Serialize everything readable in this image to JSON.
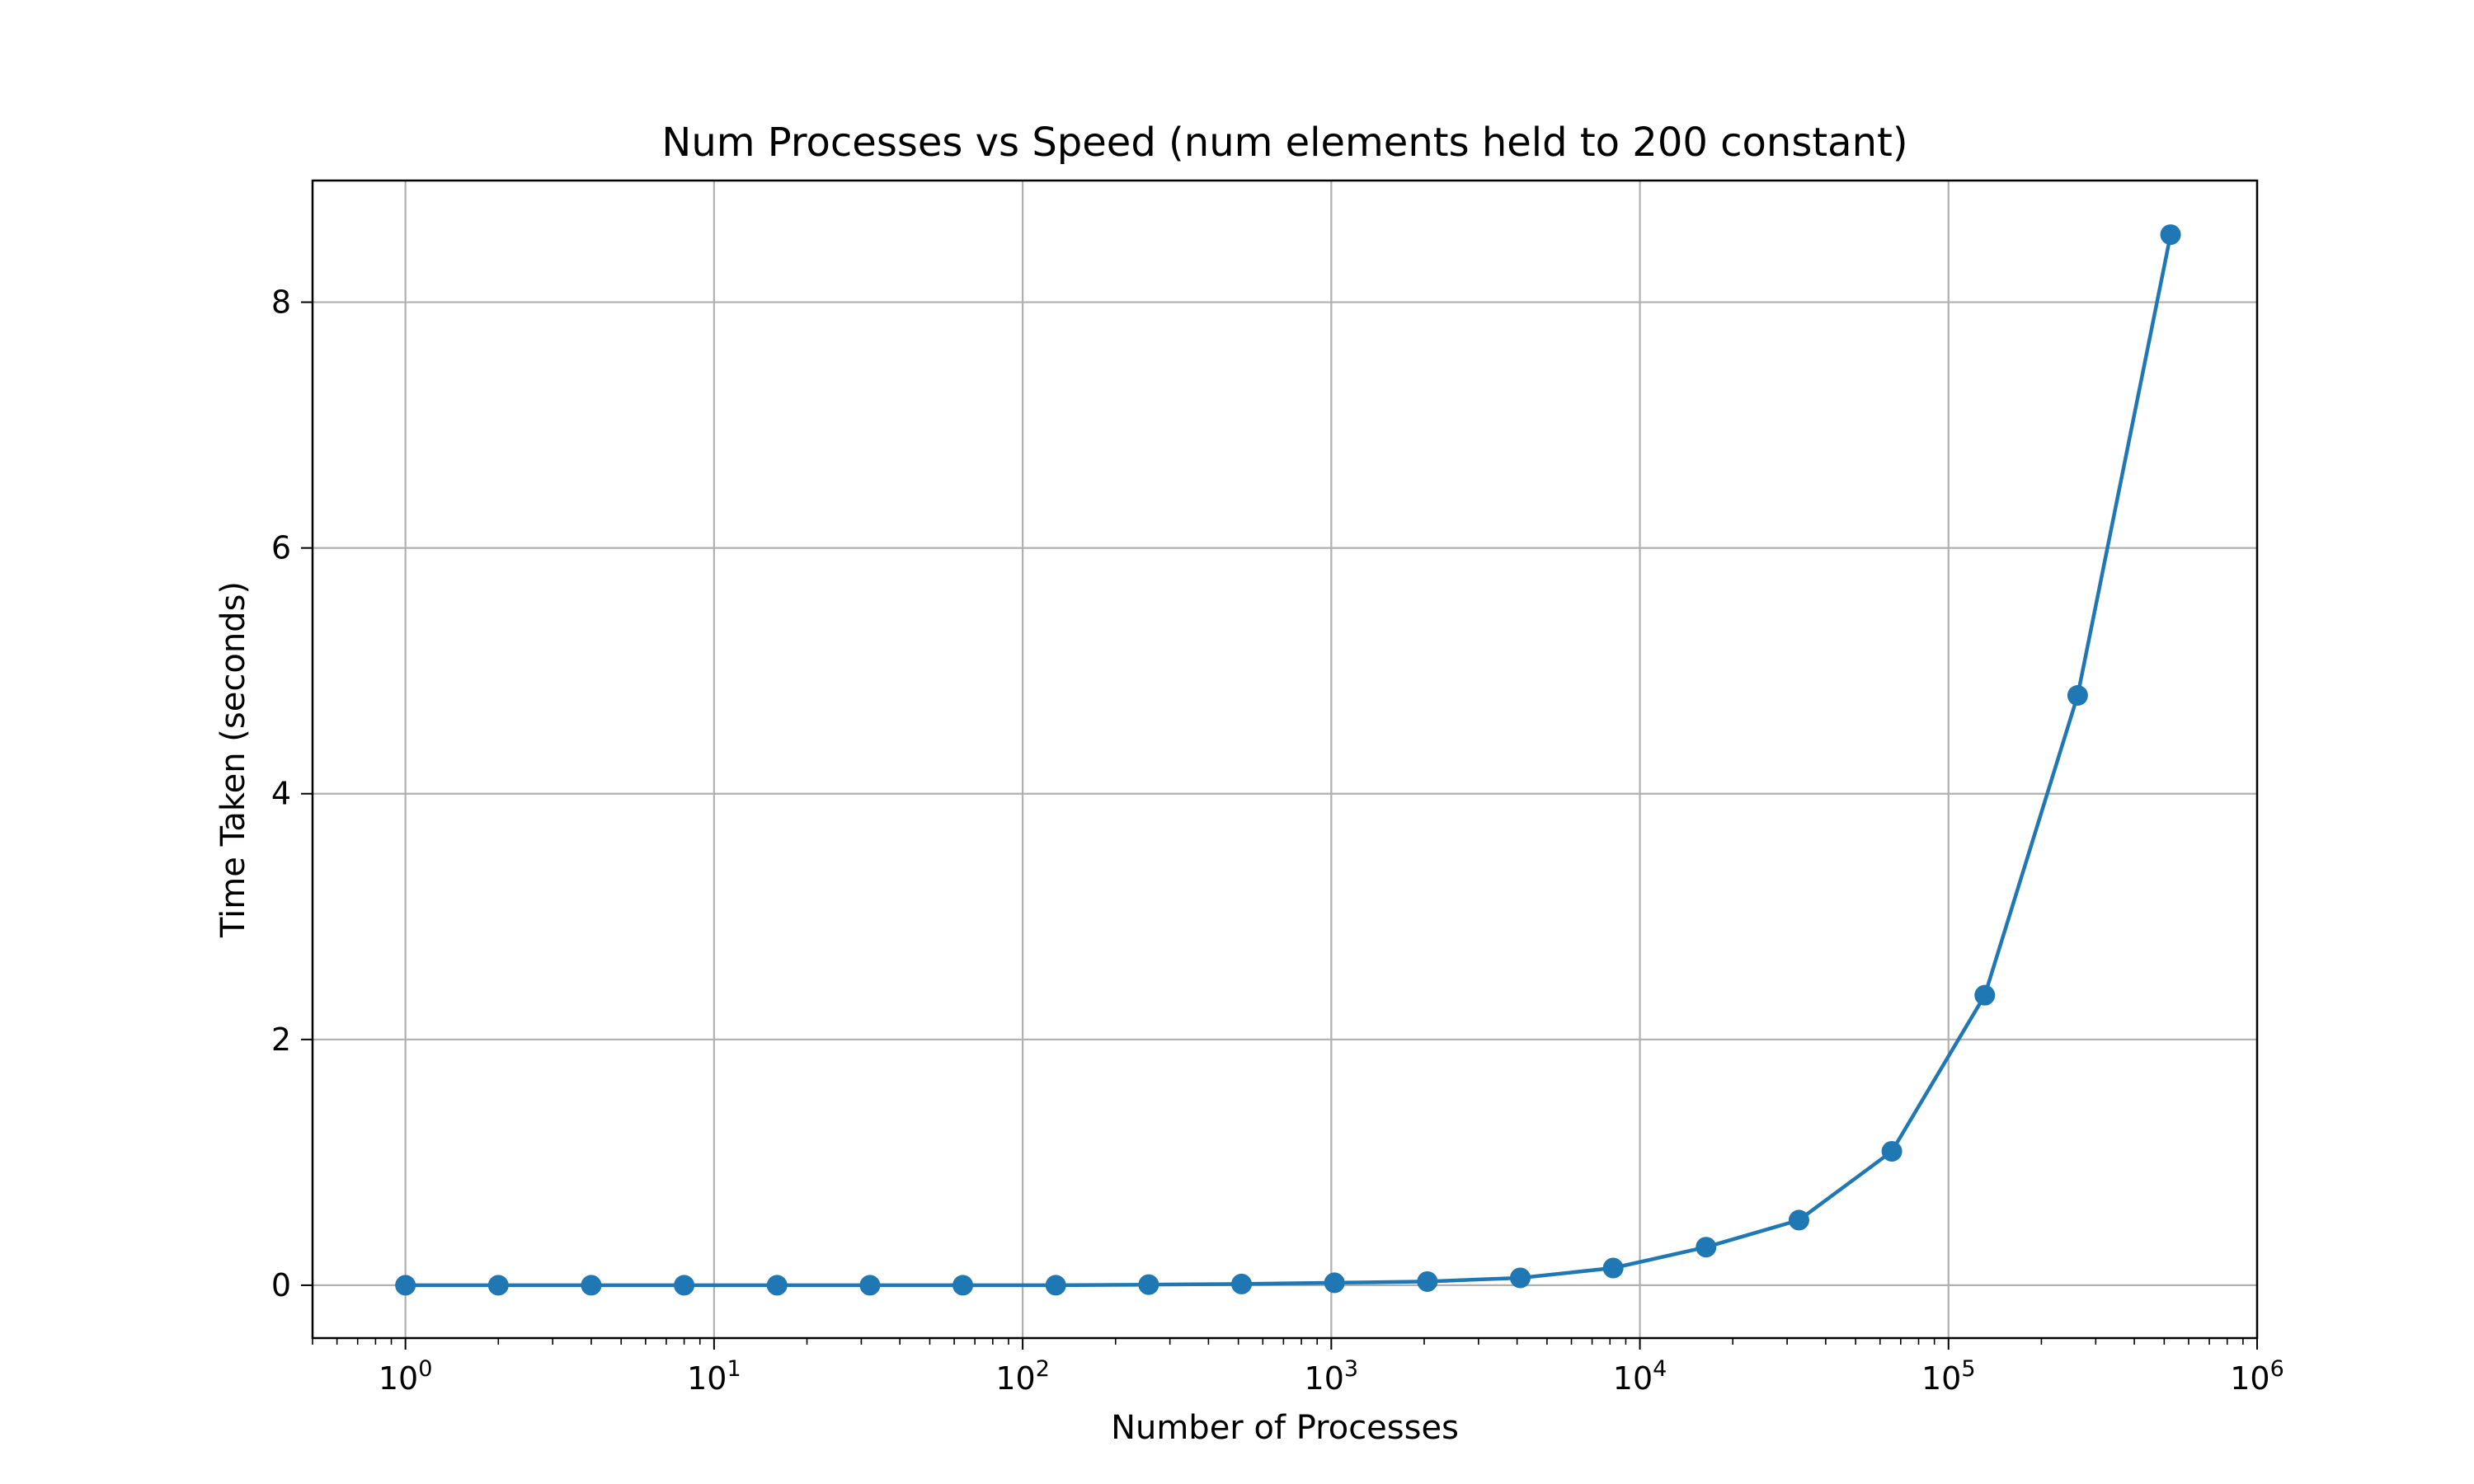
{
  "chart_data": {
    "type": "line",
    "title": "Num Processes vs Speed (num elements held to 200 constant)",
    "xlabel": "Number of Processes",
    "ylabel": "Time Taken (seconds)",
    "xscale": "log",
    "xlim": [
      0.5,
      1000000
    ],
    "ylim": [
      -0.43,
      8.99
    ],
    "grid": true,
    "x_ticks": [
      {
        "base": "10",
        "exp": "0",
        "value": 1
      },
      {
        "base": "10",
        "exp": "1",
        "value": 10
      },
      {
        "base": "10",
        "exp": "2",
        "value": 100
      },
      {
        "base": "10",
        "exp": "3",
        "value": 1000
      },
      {
        "base": "10",
        "exp": "4",
        "value": 10000
      },
      {
        "base": "10",
        "exp": "5",
        "value": 100000
      },
      {
        "base": "10",
        "exp": "6",
        "value": 1000000
      }
    ],
    "y_ticks": [
      {
        "label": "0",
        "value": 0
      },
      {
        "label": "2",
        "value": 2
      },
      {
        "label": "4",
        "value": 4
      },
      {
        "label": "6",
        "value": 6
      },
      {
        "label": "8",
        "value": 8
      }
    ],
    "series": [
      {
        "color": "#1f77b4",
        "marker": "circle",
        "x": [
          1,
          2,
          4,
          8,
          16,
          32,
          64,
          128,
          256,
          512,
          1024,
          2048,
          4096,
          8192,
          16384,
          32768,
          65536,
          131072,
          262144,
          524288
        ],
        "y": [
          0.0,
          0.0,
          0.0,
          0.0,
          0.0,
          0.0,
          0.0,
          0.0,
          0.005,
          0.01,
          0.02,
          0.03,
          0.06,
          0.14,
          0.31,
          0.53,
          1.09,
          2.36,
          4.8,
          8.55
        ]
      }
    ]
  }
}
